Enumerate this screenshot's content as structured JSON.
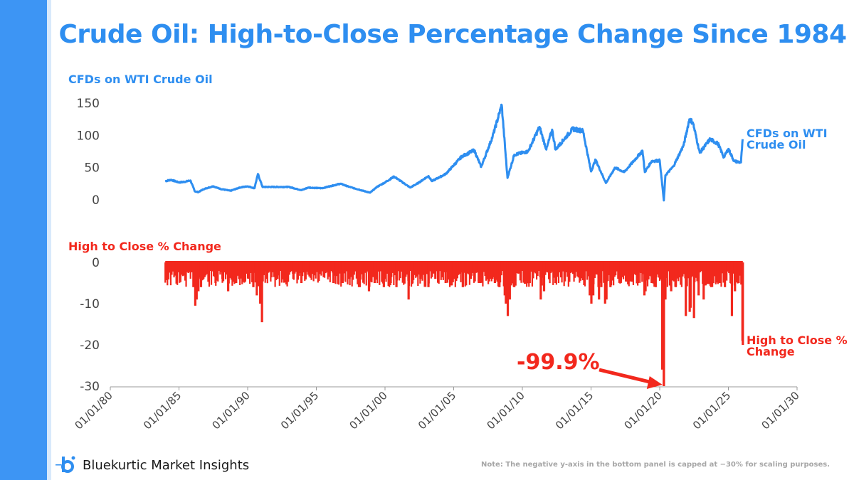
{
  "page": {
    "title": "Crude Oil: High-to-Close Percentage Change Since 1984",
    "footer_note": "Note: The negative y-axis in the bottom panel is capped at −30% for scaling purposes.",
    "brand_name": "Bluekurtic Market Insights",
    "colors": {
      "accent_blue": "#2e8ef0",
      "series_red": "#f2281d",
      "sidebar": "#3d95f4"
    }
  },
  "chart_data": [
    {
      "type": "line",
      "title": "CFDs on WTI Crude Oil",
      "x_type": "date",
      "xlim": [
        "1980-01-01",
        "2030-01-01"
      ],
      "ylim": [
        -12,
        150
      ],
      "yticks": [
        "150",
        "100",
        "50",
        "0"
      ],
      "series": [
        {
          "name": "CFDs on WTI Crude Oil",
          "end_label": [
            "CFDs on WTI",
            "Crude Oil"
          ],
          "color": "#2e8ef0",
          "points": [
            [
              "1984-01-01",
              29
            ],
            [
              "1984-06-01",
              31
            ],
            [
              "1985-01-01",
              27
            ],
            [
              "1985-06-01",
              28
            ],
            [
              "1985-11-01",
              30
            ],
            [
              "1986-03-01",
              13
            ],
            [
              "1986-06-01",
              12
            ],
            [
              "1986-10-01",
              16
            ],
            [
              "1987-01-01",
              18
            ],
            [
              "1987-07-01",
              21
            ],
            [
              "1988-01-01",
              17
            ],
            [
              "1988-10-01",
              14
            ],
            [
              "1989-06-01",
              19
            ],
            [
              "1990-01-01",
              21
            ],
            [
              "1990-07-01",
              18
            ],
            [
              "1990-10-01",
              40
            ],
            [
              "1991-02-01",
              20
            ],
            [
              "1992-01-01",
              20
            ],
            [
              "1993-01-01",
              20
            ],
            [
              "1993-12-01",
              15
            ],
            [
              "1994-06-01",
              19
            ],
            [
              "1995-06-01",
              18
            ],
            [
              "1996-10-01",
              25
            ],
            [
              "1997-06-01",
              20
            ],
            [
              "1998-06-01",
              14
            ],
            [
              "1998-12-01",
              11
            ],
            [
              "1999-06-01",
              20
            ],
            [
              "2000-01-01",
              27
            ],
            [
              "2000-09-01",
              36
            ],
            [
              "2001-11-01",
              19
            ],
            [
              "2002-06-01",
              26
            ],
            [
              "2003-03-01",
              37
            ],
            [
              "2003-06-01",
              29
            ],
            [
              "2004-06-01",
              40
            ],
            [
              "2005-08-01",
              67
            ],
            [
              "2006-07-01",
              77
            ],
            [
              "2007-01-01",
              51
            ],
            [
              "2007-11-01",
              98
            ],
            [
              "2008-07-01",
              147
            ],
            [
              "2008-12-01",
              34
            ],
            [
              "2009-06-01",
              70
            ],
            [
              "2010-06-01",
              75
            ],
            [
              "2011-04-01",
              113
            ],
            [
              "2011-10-01",
              78
            ],
            [
              "2012-03-01",
              109
            ],
            [
              "2012-06-01",
              78
            ],
            [
              "2013-09-01",
              110
            ],
            [
              "2014-06-01",
              107
            ],
            [
              "2015-01-01",
              44
            ],
            [
              "2015-05-01",
              62
            ],
            [
              "2016-02-01",
              26
            ],
            [
              "2016-10-01",
              50
            ],
            [
              "2017-06-01",
              43
            ],
            [
              "2018-10-01",
              76
            ],
            [
              "2018-12-01",
              43
            ],
            [
              "2019-06-01",
              60
            ],
            [
              "2020-01-01",
              61
            ],
            [
              "2020-04-20",
              -1
            ],
            [
              "2020-06-01",
              38
            ],
            [
              "2021-01-01",
              52
            ],
            [
              "2021-10-01",
              85
            ],
            [
              "2022-03-01",
              125
            ],
            [
              "2022-06-01",
              120
            ],
            [
              "2022-12-01",
              73
            ],
            [
              "2023-09-01",
              94
            ],
            [
              "2024-04-01",
              87
            ],
            [
              "2024-09-01",
              66
            ],
            [
              "2025-01-01",
              79
            ],
            [
              "2025-06-01",
              60
            ],
            [
              "2025-12-01",
              58
            ],
            [
              "2026-01-15",
              94
            ]
          ]
        }
      ]
    },
    {
      "type": "area",
      "title": "High to Close % Change",
      "x_type": "date",
      "xlim": [
        "1980-01-01",
        "2030-01-01"
      ],
      "ylim": [
        -30,
        0
      ],
      "yticks": [
        "0",
        "-10",
        "-20",
        "-30"
      ],
      "xticks": [
        "01/01/80",
        "01/01/85",
        "01/01/90",
        "01/01/95",
        "01/01/00",
        "01/01/05",
        "01/01/10",
        "01/01/15",
        "01/01/20",
        "01/01/25",
        "01/01/30"
      ],
      "series": [
        {
          "name": "High to Close % Change",
          "end_label": [
            "High to Close %",
            "Change"
          ],
          "color": "#f2281d",
          "spikes": [
            [
              "1984-02-01",
              -3
            ],
            [
              "1984-08-01",
              -2
            ],
            [
              "1985-03-01",
              -3
            ],
            [
              "1985-09-01",
              -2
            ],
            [
              "1986-01-20",
              -6
            ],
            [
              "1986-03-10",
              -10.5
            ],
            [
              "1986-04-15",
              -9
            ],
            [
              "1986-06-01",
              -7
            ],
            [
              "1986-08-10",
              -6
            ],
            [
              "1987-03-01",
              -4
            ],
            [
              "1987-09-01",
              -5
            ],
            [
              "1988-03-01",
              -4
            ],
            [
              "1988-08-01",
              -7
            ],
            [
              "1989-03-01",
              -5
            ],
            [
              "1989-09-01",
              -4
            ],
            [
              "1990-06-01",
              -6
            ],
            [
              "1990-09-01",
              -8
            ],
            [
              "1990-12-01",
              -10
            ],
            [
              "1991-01-17",
              -14.5
            ],
            [
              "1991-06-01",
              -4
            ],
            [
              "1992-03-01",
              -4
            ],
            [
              "1992-09-01",
              -3
            ],
            [
              "1993-05-01",
              -4
            ],
            [
              "1993-12-01",
              -5
            ],
            [
              "1994-06-01",
              -3
            ],
            [
              "1995-03-01",
              -3
            ],
            [
              "1996-04-01",
              -5
            ],
            [
              "1996-12-01",
              -5
            ],
            [
              "1997-06-01",
              -4
            ],
            [
              "1998-03-01",
              -6
            ],
            [
              "1998-11-01",
              -7
            ],
            [
              "1999-04-01",
              -5
            ],
            [
              "1999-12-01",
              -6
            ],
            [
              "2000-06-01",
              -5
            ],
            [
              "2000-11-01",
              -6
            ],
            [
              "2001-09-20",
              -9
            ],
            [
              "2002-01-01",
              -5
            ],
            [
              "2002-08-01",
              -4
            ],
            [
              "2003-03-01",
              -6
            ],
            [
              "2003-09-01",
              -4
            ],
            [
              "2004-06-01",
              -5
            ],
            [
              "2005-01-01",
              -4
            ],
            [
              "2005-09-01",
              -6
            ],
            [
              "2006-04-01",
              -4
            ],
            [
              "2006-11-01",
              -5
            ],
            [
              "2007-06-01",
              -4
            ],
            [
              "2008-01-01",
              -5
            ],
            [
              "2008-05-01",
              -6
            ],
            [
              "2008-09-20",
              -8
            ],
            [
              "2008-10-20",
              -10
            ],
            [
              "2008-12-10",
              -13
            ],
            [
              "2009-02-01",
              -9
            ],
            [
              "2009-06-01",
              -6
            ],
            [
              "2010-05-01",
              -5
            ],
            [
              "2011-05-05",
              -9
            ],
            [
              "2011-08-01",
              -7
            ],
            [
              "2012-06-01",
              -5
            ],
            [
              "2013-06-01",
              -4
            ],
            [
              "2014-06-01",
              -4
            ],
            [
              "2014-11-28",
              -8
            ],
            [
              "2015-01-10",
              -10
            ],
            [
              "2015-03-01",
              -8
            ],
            [
              "2015-08-01",
              -9
            ],
            [
              "2015-10-01",
              -6
            ],
            [
              "2016-01-10",
              -10
            ],
            [
              "2016-02-15",
              -9
            ],
            [
              "2016-06-01",
              -6
            ],
            [
              "2017-03-01",
              -5
            ],
            [
              "2017-09-01",
              -4
            ],
            [
              "2018-06-01",
              -5
            ],
            [
              "2018-11-20",
              -8
            ],
            [
              "2018-12-20",
              -7
            ],
            [
              "2019-06-01",
              -5
            ],
            [
              "2019-09-16",
              -6
            ],
            [
              "2020-03-09",
              -26
            ],
            [
              "2020-04-20",
              -30
            ],
            [
              "2020-04-21",
              -30
            ],
            [
              "2020-06-01",
              -9
            ],
            [
              "2020-11-01",
              -7
            ],
            [
              "2021-03-01",
              -6
            ],
            [
              "2021-11-26",
              -13
            ],
            [
              "2022-03-09",
              -12
            ],
            [
              "2022-04-01",
              -11
            ],
            [
              "2022-07-01",
              -13.5
            ],
            [
              "2022-11-01",
              -8
            ],
            [
              "2023-03-15",
              -9
            ],
            [
              "2023-10-01",
              -6
            ],
            [
              "2024-06-01",
              -5
            ],
            [
              "2024-10-01",
              -6
            ],
            [
              "2025-03-01",
              -5
            ],
            [
              "2025-04-05",
              -13
            ],
            [
              "2025-06-25",
              -7
            ],
            [
              "2025-10-01",
              -5
            ],
            [
              "2026-01-10",
              -19
            ],
            [
              "2026-01-20",
              -20
            ]
          ],
          "annotation": {
            "text": "-99.9%",
            "target_x": "2020-04-20",
            "target_y": -30
          }
        }
      ]
    }
  ]
}
